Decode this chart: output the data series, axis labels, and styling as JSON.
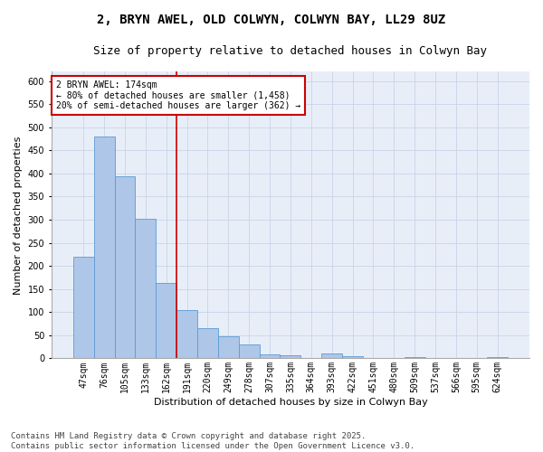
{
  "title_line1": "2, BRYN AWEL, OLD COLWYN, COLWYN BAY, LL29 8UZ",
  "title_line2": "Size of property relative to detached houses in Colwyn Bay",
  "xlabel": "Distribution of detached houses by size in Colwyn Bay",
  "ylabel": "Number of detached properties",
  "categories": [
    "47sqm",
    "76sqm",
    "105sqm",
    "133sqm",
    "162sqm",
    "191sqm",
    "220sqm",
    "249sqm",
    "278sqm",
    "307sqm",
    "335sqm",
    "364sqm",
    "393sqm",
    "422sqm",
    "451sqm",
    "480sqm",
    "509sqm",
    "537sqm",
    "566sqm",
    "595sqm",
    "624sqm"
  ],
  "values": [
    220,
    480,
    393,
    302,
    163,
    105,
    65,
    47,
    30,
    9,
    7,
    0,
    10,
    4,
    0,
    0,
    3,
    0,
    0,
    0,
    3
  ],
  "bar_color": "#aec6e8",
  "bar_edgecolor": "#5b9bd5",
  "grid_color": "#c8d4e8",
  "background_color": "#e8eef8",
  "vline_color": "#cc0000",
  "annotation_title": "2 BRYN AWEL: 174sqm",
  "annotation_line1": "← 80% of detached houses are smaller (1,458)",
  "annotation_line2": "20% of semi-detached houses are larger (362) →",
  "annotation_box_color": "#cc0000",
  "ylim": [
    0,
    620
  ],
  "yticks": [
    0,
    50,
    100,
    150,
    200,
    250,
    300,
    350,
    400,
    450,
    500,
    550,
    600
  ],
  "footer_line1": "Contains HM Land Registry data © Crown copyright and database right 2025.",
  "footer_line2": "Contains public sector information licensed under the Open Government Licence v3.0.",
  "title_fontsize": 10,
  "subtitle_fontsize": 9,
  "axis_label_fontsize": 8,
  "tick_fontsize": 7,
  "annotation_fontsize": 7,
  "footer_fontsize": 6.5
}
